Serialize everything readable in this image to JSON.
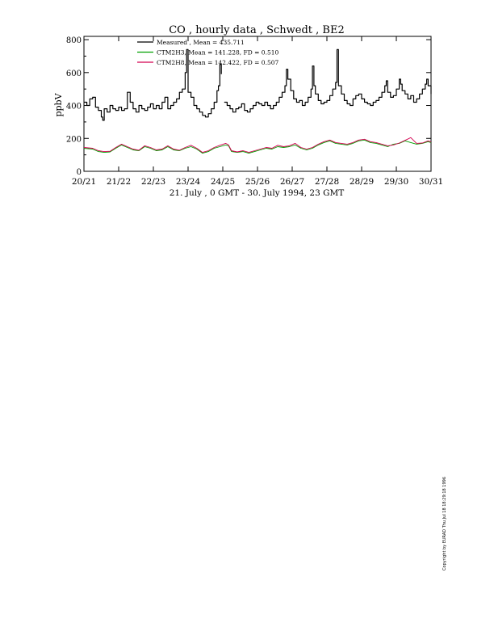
{
  "chart_data": {
    "type": "line",
    "title": "CO , hourly data , Schwedt , BE2",
    "xlabel": "21. July , 0 GMT - 30. July 1994, 23 GMT",
    "ylabel": "ppbV",
    "x_tick_labels": [
      "20/21",
      "21/22",
      "22/23",
      "23/24",
      "24/25",
      "25/26",
      "26/27",
      "27/28",
      "28/29",
      "29/30",
      "30/31"
    ],
    "xlim": [
      0,
      240
    ],
    "ylim": [
      0,
      820
    ],
    "y_ticks": [
      0,
      200,
      400,
      600,
      800
    ],
    "legend": [
      {
        "label": "Measured      , Mean = 435.711",
        "color": "#000000"
      },
      {
        "label": "CTM2H3, Mean = 141.228, FD = 0.510",
        "color": "#00a000"
      },
      {
        "label": "CTM2H8, Mean = 142.422, FD = 0.507",
        "color": "#d40050"
      }
    ],
    "legend_position": "top-center",
    "series": [
      {
        "name": "Measured",
        "color": "#000000",
        "step": true,
        "points": [
          [
            0,
            420
          ],
          [
            2,
            400
          ],
          [
            4,
            440
          ],
          [
            6,
            450
          ],
          [
            8,
            390
          ],
          [
            10,
            370
          ],
          [
            12,
            330
          ],
          [
            13,
            310
          ],
          [
            14,
            380
          ],
          [
            16,
            360
          ],
          [
            18,
            400
          ],
          [
            20,
            380
          ],
          [
            22,
            370
          ],
          [
            24,
            390
          ],
          [
            26,
            370
          ],
          [
            28,
            380
          ],
          [
            30,
            480
          ],
          [
            32,
            420
          ],
          [
            34,
            380
          ],
          [
            36,
            360
          ],
          [
            38,
            400
          ],
          [
            40,
            380
          ],
          [
            42,
            370
          ],
          [
            44,
            390
          ],
          [
            46,
            410
          ],
          [
            48,
            380
          ],
          [
            50,
            400
          ],
          [
            52,
            380
          ],
          [
            54,
            420
          ],
          [
            56,
            450
          ],
          [
            58,
            380
          ],
          [
            60,
            400
          ],
          [
            62,
            420
          ],
          [
            64,
            440
          ],
          [
            66,
            480
          ],
          [
            68,
            500
          ],
          [
            70,
            600
          ],
          [
            71,
            740
          ],
          [
            72,
            480
          ],
          [
            74,
            450
          ],
          [
            76,
            400
          ],
          [
            78,
            380
          ],
          [
            80,
            360
          ],
          [
            82,
            340
          ],
          [
            84,
            330
          ],
          [
            86,
            350
          ],
          [
            88,
            380
          ],
          [
            90,
            420
          ],
          [
            92,
            490
          ],
          [
            93,
            520
          ],
          [
            94,
            650
          ],
          [
            95,
            590
          ],
          [
            96,
            null
          ],
          [
            97,
            420
          ],
          [
            99,
            400
          ],
          [
            101,
            380
          ],
          [
            103,
            360
          ],
          [
            105,
            380
          ],
          [
            107,
            390
          ],
          [
            109,
            410
          ],
          [
            111,
            370
          ],
          [
            113,
            360
          ],
          [
            115,
            380
          ],
          [
            117,
            400
          ],
          [
            119,
            420
          ],
          [
            121,
            410
          ],
          [
            123,
            400
          ],
          [
            125,
            420
          ],
          [
            127,
            400
          ],
          [
            129,
            380
          ],
          [
            131,
            400
          ],
          [
            133,
            420
          ],
          [
            135,
            450
          ],
          [
            137,
            480
          ],
          [
            139,
            520
          ],
          [
            140,
            620
          ],
          [
            141,
            560
          ],
          [
            143,
            490
          ],
          [
            145,
            440
          ],
          [
            147,
            420
          ],
          [
            149,
            430
          ],
          [
            151,
            400
          ],
          [
            153,
            420
          ],
          [
            155,
            450
          ],
          [
            157,
            500
          ],
          [
            158,
            640
          ],
          [
            159,
            520
          ],
          [
            160,
            470
          ],
          [
            162,
            430
          ],
          [
            164,
            410
          ],
          [
            166,
            420
          ],
          [
            168,
            430
          ],
          [
            170,
            460
          ],
          [
            172,
            500
          ],
          [
            174,
            540
          ],
          [
            175,
            740
          ],
          [
            176,
            520
          ],
          [
            178,
            470
          ],
          [
            180,
            430
          ],
          [
            182,
            410
          ],
          [
            184,
            400
          ],
          [
            186,
            440
          ],
          [
            188,
            460
          ],
          [
            190,
            470
          ],
          [
            192,
            440
          ],
          [
            194,
            420
          ],
          [
            196,
            410
          ],
          [
            198,
            400
          ],
          [
            200,
            420
          ],
          [
            202,
            430
          ],
          [
            204,
            450
          ],
          [
            206,
            480
          ],
          [
            208,
            520
          ],
          [
            209,
            550
          ],
          [
            210,
            480
          ],
          [
            212,
            450
          ],
          [
            214,
            460
          ],
          [
            216,
            500
          ],
          [
            218,
            560
          ],
          [
            219,
            530
          ],
          [
            220,
            490
          ],
          [
            222,
            470
          ],
          [
            224,
            440
          ],
          [
            226,
            460
          ],
          [
            228,
            420
          ],
          [
            230,
            440
          ],
          [
            232,
            470
          ],
          [
            234,
            500
          ],
          [
            236,
            530
          ],
          [
            237,
            560
          ],
          [
            238,
            520
          ],
          [
            240,
            470
          ]
        ]
      },
      {
        "name": "CTM2H3",
        "color": "#00a000",
        "points": [
          [
            0,
            140
          ],
          [
            6,
            135
          ],
          [
            10,
            120
          ],
          [
            14,
            115
          ],
          [
            18,
            118
          ],
          [
            22,
            140
          ],
          [
            26,
            160
          ],
          [
            30,
            145
          ],
          [
            34,
            130
          ],
          [
            38,
            125
          ],
          [
            42,
            150
          ],
          [
            46,
            140
          ],
          [
            50,
            125
          ],
          [
            54,
            130
          ],
          [
            58,
            150
          ],
          [
            62,
            130
          ],
          [
            66,
            125
          ],
          [
            70,
            140
          ],
          [
            74,
            150
          ],
          [
            78,
            135
          ],
          [
            82,
            110
          ],
          [
            86,
            120
          ],
          [
            90,
            140
          ],
          [
            94,
            150
          ],
          [
            98,
            160
          ],
          [
            100,
            155
          ],
          [
            102,
            120
          ],
          [
            106,
            115
          ],
          [
            110,
            120
          ],
          [
            114,
            110
          ],
          [
            118,
            120
          ],
          [
            122,
            130
          ],
          [
            126,
            140
          ],
          [
            130,
            135
          ],
          [
            134,
            150
          ],
          [
            138,
            145
          ],
          [
            142,
            150
          ],
          [
            146,
            160
          ],
          [
            150,
            140
          ],
          [
            154,
            130
          ],
          [
            158,
            140
          ],
          [
            162,
            160
          ],
          [
            166,
            175
          ],
          [
            170,
            185
          ],
          [
            174,
            170
          ],
          [
            178,
            165
          ],
          [
            182,
            160
          ],
          [
            186,
            170
          ],
          [
            190,
            185
          ],
          [
            194,
            190
          ],
          [
            198,
            175
          ],
          [
            202,
            170
          ],
          [
            206,
            160
          ],
          [
            210,
            150
          ],
          [
            214,
            165
          ],
          [
            218,
            170
          ],
          [
            222,
            185
          ],
          [
            226,
            175
          ],
          [
            230,
            165
          ],
          [
            234,
            170
          ],
          [
            238,
            180
          ],
          [
            240,
            175
          ]
        ]
      },
      {
        "name": "CTM2H8",
        "color": "#d40050",
        "points": [
          [
            0,
            145
          ],
          [
            6,
            140
          ],
          [
            10,
            125
          ],
          [
            14,
            120
          ],
          [
            18,
            122
          ],
          [
            22,
            145
          ],
          [
            26,
            165
          ],
          [
            30,
            150
          ],
          [
            34,
            135
          ],
          [
            38,
            128
          ],
          [
            42,
            155
          ],
          [
            46,
            145
          ],
          [
            50,
            130
          ],
          [
            54,
            135
          ],
          [
            58,
            155
          ],
          [
            62,
            135
          ],
          [
            66,
            128
          ],
          [
            70,
            145
          ],
          [
            74,
            158
          ],
          [
            78,
            140
          ],
          [
            82,
            115
          ],
          [
            86,
            125
          ],
          [
            90,
            145
          ],
          [
            94,
            158
          ],
          [
            98,
            170
          ],
          [
            100,
            160
          ],
          [
            102,
            125
          ],
          [
            106,
            118
          ],
          [
            110,
            125
          ],
          [
            114,
            115
          ],
          [
            118,
            125
          ],
          [
            122,
            135
          ],
          [
            126,
            145
          ],
          [
            130,
            140
          ],
          [
            134,
            158
          ],
          [
            138,
            150
          ],
          [
            142,
            155
          ],
          [
            146,
            170
          ],
          [
            150,
            145
          ],
          [
            154,
            135
          ],
          [
            158,
            145
          ],
          [
            162,
            165
          ],
          [
            166,
            180
          ],
          [
            170,
            190
          ],
          [
            174,
            175
          ],
          [
            178,
            170
          ],
          [
            182,
            165
          ],
          [
            186,
            175
          ],
          [
            190,
            190
          ],
          [
            194,
            195
          ],
          [
            198,
            180
          ],
          [
            202,
            175
          ],
          [
            206,
            165
          ],
          [
            210,
            155
          ],
          [
            214,
            160
          ],
          [
            218,
            172
          ],
          [
            222,
            188
          ],
          [
            226,
            205
          ],
          [
            230,
            170
          ],
          [
            234,
            172
          ],
          [
            238,
            185
          ],
          [
            240,
            178
          ]
        ]
      }
    ]
  },
  "copyright": "Copyright by EURAD  Thu Jul 18 18:29:18 1996"
}
